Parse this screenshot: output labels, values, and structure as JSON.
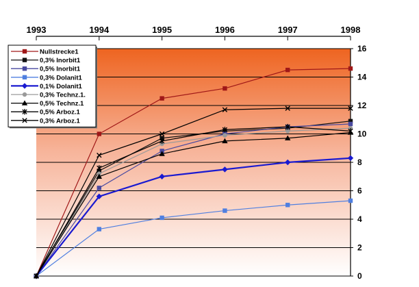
{
  "chart_data": {
    "type": "line",
    "title": "",
    "xlabel": "",
    "ylabel": "",
    "x": [
      "1993",
      "1994",
      "1995",
      "1996",
      "1997",
      "1998"
    ],
    "ylim": [
      0,
      16
    ],
    "yticks": [
      "0",
      "2",
      "4",
      "6",
      "8",
      "10",
      "12",
      "14",
      "16"
    ],
    "grid": true,
    "legend_position": "top-left",
    "background": "gradient orange (top) to white (bottom)",
    "series": [
      {
        "name": "Nullstrecke1",
        "color": "#a01818",
        "marker": "square",
        "values": [
          0,
          10.0,
          12.5,
          13.2,
          14.5,
          14.6
        ]
      },
      {
        "name": "0,3% Inorbit1",
        "color": "#111111",
        "marker": "square",
        "values": [
          0,
          7.4,
          9.7,
          10.2,
          10.4,
          10.9
        ]
      },
      {
        "name": "0,5% Inorbit1",
        "color": "#4a4aa0",
        "marker": "square",
        "values": [
          0,
          6.2,
          8.8,
          10.0,
          10.5,
          10.7
        ]
      },
      {
        "name": "0,3% Dolanit1",
        "color": "#4f7fe0",
        "marker": "square",
        "values": [
          0,
          3.3,
          4.1,
          4.6,
          5.0,
          5.3
        ]
      },
      {
        "name": "0,1% Dolanit1",
        "color": "#1a1ad0",
        "marker": "diamond",
        "values": [
          0,
          5.6,
          7.0,
          7.5,
          8.0,
          8.3
        ]
      },
      {
        "name": "0,3% Technz.1.",
        "color": "#9a9a9a",
        "marker": "circle",
        "values": [
          0,
          7.2,
          9.3,
          9.9,
          10.2,
          10.4
        ]
      },
      {
        "name": "0,5% Technz.1",
        "color": "#000000",
        "marker": "triangle",
        "values": [
          0,
          7.0,
          8.6,
          9.5,
          9.7,
          10.1
        ]
      },
      {
        "name": "0,5% Arboz.1",
        "color": "#000000",
        "marker": "star",
        "values": [
          0,
          7.6,
          9.5,
          10.3,
          10.5,
          10.2
        ]
      },
      {
        "name": "0,3% Arboz.1",
        "color": "#000000",
        "marker": "x",
        "values": [
          0,
          8.5,
          10.0,
          11.7,
          11.8,
          11.8
        ]
      }
    ]
  }
}
